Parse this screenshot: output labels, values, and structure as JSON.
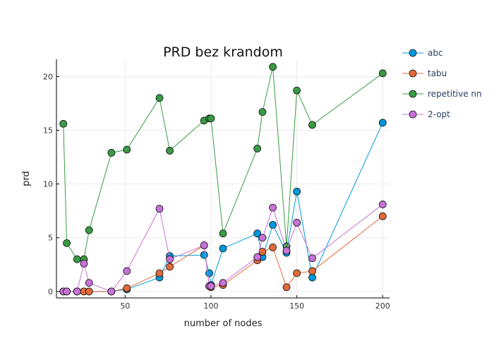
{
  "chart_data": {
    "type": "line",
    "title": "PRD bez krandom",
    "xlabel": "number of nodes",
    "ylabel": "prd",
    "xlim": [
      10,
      204
    ],
    "ylim": [
      -0.6,
      21.6
    ],
    "xticks": [
      50,
      100,
      150,
      200
    ],
    "yticks": [
      0,
      5,
      10,
      15,
      20
    ],
    "grid": true,
    "legend_position": "right",
    "x": [
      14,
      16,
      22,
      26,
      29,
      42,
      51,
      70,
      76,
      96,
      99,
      100,
      107,
      127,
      130,
      136,
      144,
      150,
      159,
      200
    ],
    "series": [
      {
        "name": "abc",
        "color": "#0098dc",
        "values": [
          0,
          0,
          0,
          0,
          0,
          0,
          0.2,
          1.3,
          3.3,
          3.4,
          1.7,
          0.6,
          4.0,
          5.4,
          3.2,
          6.2,
          3.6,
          9.3,
          1.3,
          15.7
        ]
      },
      {
        "name": "tabu",
        "color": "#e26a3b",
        "values": [
          0,
          0,
          0,
          0,
          0,
          0,
          0.3,
          1.7,
          2.3,
          4.3,
          0.5,
          0.4,
          0.6,
          2.9,
          3.7,
          4.1,
          0.4,
          1.7,
          1.9,
          7.0
        ]
      },
      {
        "name": "repetitive nn",
        "color": "#3a9a45",
        "values": [
          15.6,
          4.5,
          3.0,
          3.0,
          5.7,
          12.9,
          13.2,
          18.0,
          13.1,
          15.9,
          16.1,
          16.1,
          5.4,
          13.3,
          16.7,
          20.9,
          4.2,
          18.7,
          15.5,
          20.3
        ]
      },
      {
        "name": "2-opt",
        "color": "#c772d6",
        "values": [
          0,
          0,
          0,
          2.6,
          0.8,
          0,
          1.9,
          7.7,
          3.0,
          4.3,
          0.5,
          0.5,
          0.8,
          3.2,
          5.0,
          7.8,
          3.8,
          6.4,
          3.1,
          8.1
        ]
      }
    ]
  }
}
